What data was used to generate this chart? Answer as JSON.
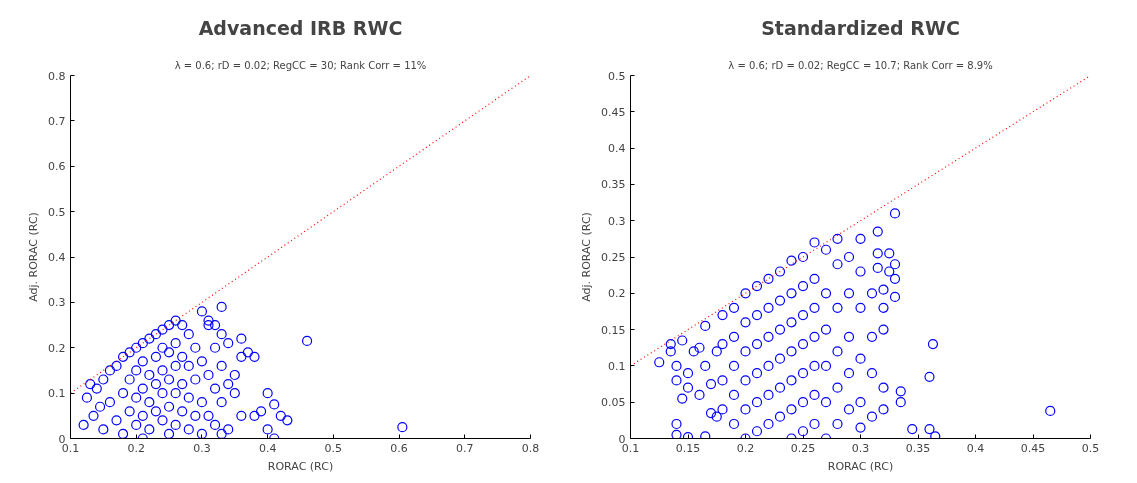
{
  "chart_data": [
    {
      "type": "scatter",
      "title": "Advanced IRB RWC",
      "subtitle": "λ = 0.6; rD = 0.02; RegCC = 30; Rank Corr = 11%",
      "xlabel": "RORAC (RC)",
      "ylabel": "Adj. RORAC (RC)",
      "xlim": [
        0.1,
        0.8
      ],
      "ylim": [
        0,
        0.8
      ],
      "xticks": [
        0.1,
        0.2,
        0.3,
        0.4,
        0.5,
        0.6,
        0.7,
        0.8
      ],
      "yticks": [
        0,
        0.1,
        0.2,
        0.3,
        0.4,
        0.5,
        0.6,
        0.7,
        0.8
      ],
      "grid": false,
      "series": [
        {
          "marker": "circle",
          "color": "#0000ff",
          "x": [
            0.12,
            0.125,
            0.13,
            0.135,
            0.14,
            0.145,
            0.15,
            0.15,
            0.16,
            0.16,
            0.17,
            0.17,
            0.18,
            0.18,
            0.18,
            0.19,
            0.19,
            0.19,
            0.2,
            0.2,
            0.2,
            0.2,
            0.21,
            0.21,
            0.21,
            0.21,
            0.21,
            0.22,
            0.22,
            0.22,
            0.22,
            0.23,
            0.23,
            0.23,
            0.23,
            0.24,
            0.24,
            0.24,
            0.24,
            0.24,
            0.25,
            0.25,
            0.25,
            0.25,
            0.25,
            0.26,
            0.26,
            0.26,
            0.26,
            0.26,
            0.27,
            0.27,
            0.27,
            0.27,
            0.28,
            0.28,
            0.28,
            0.28,
            0.29,
            0.29,
            0.29,
            0.3,
            0.3,
            0.3,
            0.3,
            0.31,
            0.31,
            0.31,
            0.31,
            0.32,
            0.32,
            0.32,
            0.32,
            0.33,
            0.33,
            0.33,
            0.33,
            0.33,
            0.34,
            0.34,
            0.34,
            0.35,
            0.35,
            0.36,
            0.36,
            0.36,
            0.37,
            0.38,
            0.38,
            0.39,
            0.4,
            0.4,
            0.41,
            0.41,
            0.42,
            0.43,
            0.46,
            0.605
          ],
          "values": [
            0.03,
            0.09,
            0.12,
            0.05,
            0.11,
            0.07,
            0.13,
            0.02,
            0.15,
            0.08,
            0.16,
            0.04,
            0.18,
            0.1,
            0.01,
            0.19,
            0.13,
            0.06,
            0.2,
            0.15,
            0.09,
            0.03,
            0.21,
            0.17,
            0.11,
            0.05,
            0.0,
            0.22,
            0.14,
            0.08,
            0.02,
            0.23,
            0.18,
            0.12,
            0.06,
            0.24,
            0.2,
            0.15,
            0.1,
            0.04,
            0.25,
            0.19,
            0.13,
            0.07,
            0.01,
            0.26,
            0.21,
            0.16,
            0.1,
            0.03,
            0.25,
            0.18,
            0.12,
            0.06,
            0.23,
            0.16,
            0.09,
            0.02,
            0.2,
            0.13,
            0.05,
            0.28,
            0.17,
            0.08,
            0.01,
            0.25,
            0.26,
            0.14,
            0.05,
            0.25,
            0.2,
            0.11,
            0.03,
            0.29,
            0.23,
            0.16,
            0.08,
            0.01,
            0.21,
            0.12,
            0.02,
            0.14,
            0.1,
            0.22,
            0.18,
            0.05,
            0.19,
            0.18,
            0.05,
            0.06,
            0.1,
            0.02,
            0.0,
            0.075,
            0.05,
            0.04,
            0.215,
            0.025
          ]
        },
        {
          "type": "line",
          "marker": "none",
          "line_style": "dotted",
          "color": "#ff0000",
          "x": [
            0.1,
            0.8
          ],
          "values": [
            0.1,
            0.8
          ]
        }
      ]
    },
    {
      "type": "scatter",
      "title": "Standardized RWC",
      "subtitle": "λ = 0.6; rD = 0.02; RegCC = 10.7; Rank Corr = 8.9%",
      "xlabel": "RORAC (RC)",
      "ylabel": "Adj. RORAC (RC)",
      "xlim": [
        0.1,
        0.5
      ],
      "ylim": [
        0,
        0.5
      ],
      "xticks": [
        0.1,
        0.15,
        0.2,
        0.25,
        0.3,
        0.35,
        0.4,
        0.45,
        0.5
      ],
      "yticks": [
        0,
        0.05,
        0.1,
        0.15,
        0.2,
        0.25,
        0.3,
        0.35,
        0.4,
        0.45,
        0.5
      ],
      "grid": false,
      "series": [
        {
          "marker": "circle",
          "color": "#0000ff",
          "x": [
            0.125,
            0.135,
            0.135,
            0.14,
            0.14,
            0.145,
            0.145,
            0.15,
            0.15,
            0.155,
            0.16,
            0.16,
            0.165,
            0.165,
            0.17,
            0.17,
            0.14,
            0.14,
            0.15,
            0.165,
            0.175,
            0.175,
            0.18,
            0.18,
            0.18,
            0.18,
            0.19,
            0.19,
            0.19,
            0.19,
            0.19,
            0.2,
            0.2,
            0.2,
            0.2,
            0.2,
            0.2,
            0.21,
            0.21,
            0.21,
            0.21,
            0.21,
            0.21,
            0.22,
            0.22,
            0.22,
            0.22,
            0.22,
            0.22,
            0.23,
            0.23,
            0.23,
            0.23,
            0.23,
            0.23,
            0.24,
            0.24,
            0.24,
            0.24,
            0.24,
            0.24,
            0.24,
            0.25,
            0.25,
            0.25,
            0.25,
            0.25,
            0.25,
            0.25,
            0.26,
            0.26,
            0.26,
            0.26,
            0.26,
            0.26,
            0.26,
            0.27,
            0.27,
            0.27,
            0.27,
            0.27,
            0.27,
            0.28,
            0.28,
            0.28,
            0.28,
            0.28,
            0.28,
            0.29,
            0.29,
            0.29,
            0.29,
            0.29,
            0.3,
            0.3,
            0.3,
            0.3,
            0.3,
            0.3,
            0.31,
            0.31,
            0.31,
            0.31,
            0.315,
            0.315,
            0.315,
            0.32,
            0.32,
            0.32,
            0.32,
            0.32,
            0.325,
            0.325,
            0.33,
            0.33,
            0.33,
            0.33,
            0.335,
            0.335,
            0.345,
            0.36,
            0.36,
            0.363,
            0.365,
            0.465
          ],
          "values": [
            0.105,
            0.13,
            0.12,
            0.08,
            0.1,
            0.055,
            0.135,
            0.09,
            0.07,
            0.12,
            0.06,
            0.125,
            0.1,
            0.155,
            0.075,
            0.035,
            0.02,
            0.005,
            0.002,
            0.003,
            0.03,
            0.12,
            0.17,
            0.13,
            0.08,
            0.04,
            0.18,
            0.14,
            0.1,
            0.06,
            0.02,
            0.2,
            0.16,
            0.12,
            0.08,
            0.04,
            0.0,
            0.21,
            0.17,
            0.13,
            0.09,
            0.05,
            0.01,
            0.22,
            0.18,
            0.14,
            0.1,
            0.06,
            0.02,
            0.23,
            0.19,
            0.15,
            0.11,
            0.07,
            0.03,
            0.245,
            0.2,
            0.16,
            0.12,
            0.08,
            0.04,
            0.0,
            0.25,
            0.21,
            0.17,
            0.13,
            0.09,
            0.05,
            0.01,
            0.27,
            0.22,
            0.18,
            0.14,
            0.1,
            0.06,
            0.02,
            0.26,
            0.2,
            0.15,
            0.1,
            0.05,
            0.0,
            0.275,
            0.24,
            0.18,
            0.12,
            0.07,
            0.02,
            0.25,
            0.2,
            0.14,
            0.09,
            0.04,
            0.275,
            0.23,
            0.18,
            0.11,
            0.05,
            0.015,
            0.2,
            0.14,
            0.09,
            0.03,
            0.285,
            0.255,
            0.235,
            0.205,
            0.18,
            0.15,
            0.07,
            0.04,
            0.255,
            0.23,
            0.31,
            0.24,
            0.22,
            0.195,
            0.065,
            0.05,
            0.013,
            0.085,
            0.013,
            0.13,
            0.003,
            0.038
          ]
        },
        {
          "type": "line",
          "marker": "none",
          "line_style": "dotted",
          "color": "#ff0000",
          "x": [
            0.1,
            0.5
          ],
          "values": [
            0.1,
            0.5
          ]
        }
      ]
    }
  ]
}
